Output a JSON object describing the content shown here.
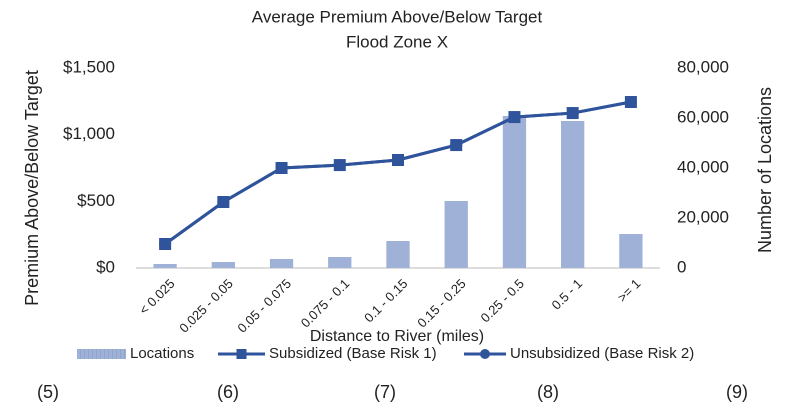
{
  "chart_data": {
    "type": "bar-line",
    "title": "Average Premium Above/Below Target",
    "subtitle": "Flood Zone X",
    "x_label": "Distance to River (miles)",
    "y_label": "Premium Above/Below Target",
    "y2_label": "Number of Locations",
    "categories": [
      "< 0.025",
      "0.025 - 0.05",
      "0.05 - 0.075",
      "0.075 - 0.1",
      "0.1 - 0.15",
      "0.15 - 0.25",
      "0.25 - 0.5",
      "0.5 - 1",
      ">= 1"
    ],
    "series": [
      {
        "name": "Locations",
        "kind": "bar",
        "axis": "y2",
        "color": "#9fb1d6",
        "values": [
          1600,
          2400,
          3600,
          4400,
          10800,
          26800,
          60800,
          58800,
          13600
        ]
      },
      {
        "name": "Subsidized (Base Risk 1)",
        "kind": "line",
        "marker": "square",
        "color": "#2f549c",
        "values": [
          180,
          495,
          750,
          772,
          810,
          922,
          1132,
          1162,
          1245
        ]
      },
      {
        "name": "Unsubsidized (Base Risk 2)",
        "kind": "line",
        "marker": "circle",
        "color": "#2f549c",
        "values": [
          180,
          495,
          750,
          772,
          810,
          922,
          1132,
          1162,
          1245
        ]
      }
    ],
    "ylim": [
      0,
      1500
    ],
    "yticks": [
      {
        "value": 0,
        "label": "$0"
      },
      {
        "value": 500,
        "label": "$500"
      },
      {
        "value": 1000,
        "label": "$1,000"
      },
      {
        "value": 1500,
        "label": "$1,500"
      }
    ],
    "y2lim": [
      0,
      80000
    ],
    "y2ticks": [
      0,
      {
        "value": 20000,
        "label": "20,000"
      },
      {
        "value": 40000,
        "label": "40,000"
      },
      {
        "value": 60000,
        "label": "60,000"
      },
      {
        "value": 80000,
        "label": "80,000"
      }
    ],
    "legend": "bottom"
  },
  "footer": [
    "(5)",
    "(6)",
    "(7)",
    "(8)",
    "(9)"
  ]
}
